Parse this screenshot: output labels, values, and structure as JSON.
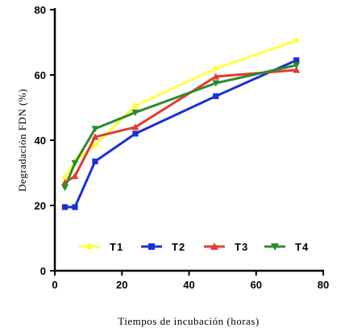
{
  "chart_data": {
    "type": "line",
    "xlabel": "Tiempos de incubación (horas)",
    "ylabel": "Degradación FDN (%)",
    "xlim": [
      0,
      80
    ],
    "ylim": [
      0,
      80
    ],
    "xticks": [
      0,
      20,
      40,
      60,
      80
    ],
    "yticks": [
      0,
      20,
      40,
      60,
      80
    ],
    "x": [
      3,
      6,
      12,
      24,
      48,
      72
    ],
    "legend_position": "bottom-center",
    "grid": false,
    "series": [
      {
        "name": "T1",
        "color": "#ffff44",
        "marker": "diamond",
        "values": [
          28.5,
          33.5,
          38.5,
          50.5,
          62.0,
          70.5
        ]
      },
      {
        "name": "T2",
        "color": "#1a2fd6",
        "marker": "square",
        "values": [
          19.5,
          19.5,
          33.5,
          42.0,
          53.5,
          64.5
        ]
      },
      {
        "name": "T3",
        "color": "#e23b2e",
        "marker": "triangle-up",
        "values": [
          27.0,
          29.0,
          41.0,
          44.0,
          59.5,
          61.5
        ]
      },
      {
        "name": "T4",
        "color": "#2e8b2e",
        "marker": "triangle-down",
        "values": [
          25.5,
          33.0,
          43.5,
          48.5,
          57.5,
          63.0
        ]
      }
    ]
  }
}
